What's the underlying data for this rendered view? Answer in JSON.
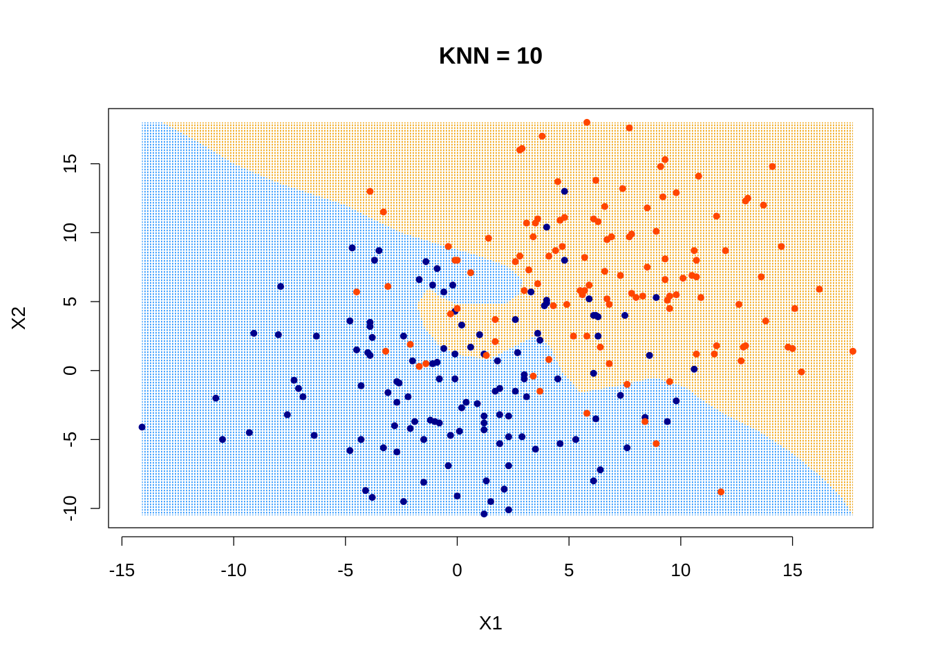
{
  "chart_data": {
    "type": "scatter",
    "title": "KNN = 10",
    "xlabel": "X1",
    "ylabel": "X2",
    "xlim": [
      -15.6,
      18.6
    ],
    "ylim": [
      -11.4,
      19.0
    ],
    "xticks": [
      -15,
      -10,
      -5,
      0,
      5,
      10,
      15
    ],
    "yticks": [
      -10,
      -5,
      0,
      5,
      10,
      15
    ],
    "grid_extent": {
      "x": [
        -14.1,
        17.7
      ],
      "y": [
        -10.5,
        18.0
      ]
    },
    "region_colors": {
      "class_0": "#1e90ff",
      "class_1": "#ffa500"
    },
    "point_colors": {
      "class_0": "#00008b",
      "class_1": "#ff4500"
    },
    "decision_boundary": [
      [
        -13.2,
        18.0
      ],
      [
        -11.5,
        16.5
      ],
      [
        -10.0,
        15.0
      ],
      [
        -8.0,
        13.6
      ],
      [
        -6.5,
        12.8
      ],
      [
        -5.0,
        12.0
      ],
      [
        -3.8,
        11.0
      ],
      [
        -2.5,
        10.0
      ],
      [
        -0.5,
        9.0
      ],
      [
        0.8,
        8.4
      ],
      [
        2.2,
        7.6
      ],
      [
        2.9,
        6.6
      ],
      [
        2.8,
        5.6
      ],
      [
        2.2,
        4.9
      ],
      [
        1.0,
        4.8
      ],
      [
        0.0,
        4.8
      ],
      [
        -0.7,
        5.3
      ],
      [
        -1.3,
        6.0
      ],
      [
        -1.8,
        4.8
      ],
      [
        -1.5,
        3.2
      ],
      [
        -0.8,
        1.8
      ],
      [
        -0.1,
        1.2
      ],
      [
        1.4,
        0.8
      ],
      [
        2.6,
        1.8
      ],
      [
        3.6,
        2.6
      ],
      [
        4.2,
        1.6
      ],
      [
        4.7,
        -0.1
      ],
      [
        5.5,
        -1.6
      ],
      [
        7.5,
        -1.0
      ],
      [
        8.8,
        -0.5
      ],
      [
        10.2,
        -1.2
      ],
      [
        11.0,
        -2.2
      ],
      [
        12.0,
        -3.2
      ],
      [
        13.5,
        -4.4
      ],
      [
        15.0,
        -6.0
      ],
      [
        16.2,
        -7.6
      ],
      [
        17.2,
        -9.2
      ],
      [
        17.7,
        -10.5
      ]
    ],
    "series": [
      {
        "values": [
          [
            -14.1,
            -4.1
          ],
          [
            -10.8,
            -2.0
          ],
          [
            -10.5,
            -5.0
          ],
          [
            -9.3,
            -4.5
          ],
          [
            -9.1,
            2.7
          ],
          [
            -7.9,
            6.1
          ],
          [
            -8.0,
            2.6
          ],
          [
            -7.3,
            -0.7
          ],
          [
            -7.1,
            -1.3
          ],
          [
            -6.9,
            -1.9
          ],
          [
            -7.6,
            -3.2
          ],
          [
            -6.4,
            -4.7
          ],
          [
            -6.3,
            2.5
          ],
          [
            -4.8,
            3.6
          ],
          [
            -4.7,
            8.9
          ],
          [
            -4.5,
            1.5
          ],
          [
            -4.3,
            -1.1
          ],
          [
            -4.3,
            -5.0
          ],
          [
            -4.8,
            -5.8
          ],
          [
            -4.1,
            -8.7
          ],
          [
            -3.8,
            -9.2
          ],
          [
            -3.9,
            3.5
          ],
          [
            -3.9,
            3.2
          ],
          [
            -3.8,
            2.4
          ],
          [
            -4.0,
            1.3
          ],
          [
            -3.9,
            1.1
          ],
          [
            -3.5,
            8.7
          ],
          [
            -3.7,
            8.0
          ],
          [
            -3.3,
            -5.6
          ],
          [
            -3.1,
            -1.6
          ],
          [
            -2.7,
            -0.8
          ],
          [
            -2.6,
            -0.9
          ],
          [
            -2.7,
            -2.3
          ],
          [
            -2.8,
            -4.0
          ],
          [
            -2.7,
            -5.9
          ],
          [
            -2.4,
            -9.5
          ],
          [
            -2.4,
            2.5
          ],
          [
            -2.2,
            -1.9
          ],
          [
            -2.1,
            -4.2
          ],
          [
            -2.0,
            0.7
          ],
          [
            -1.9,
            -3.7
          ],
          [
            -1.7,
            6.6
          ],
          [
            -1.5,
            -8.1
          ],
          [
            -1.5,
            -5.0
          ],
          [
            -1.4,
            7.9
          ],
          [
            -1.2,
            -3.6
          ],
          [
            -1.1,
            6.2
          ],
          [
            -1.1,
            0.5
          ],
          [
            -0.9,
            0.6
          ],
          [
            -1.0,
            -3.7
          ],
          [
            -0.8,
            -3.8
          ],
          [
            -0.9,
            7.4
          ],
          [
            -0.8,
            -0.6
          ],
          [
            -0.6,
            5.7
          ],
          [
            -0.6,
            1.6
          ],
          [
            -0.4,
            -6.9
          ],
          [
            -0.2,
            6.2
          ],
          [
            -0.3,
            -4.7
          ],
          [
            -0.1,
            -0.6
          ],
          [
            -0.1,
            4.3
          ],
          [
            -0.1,
            1.2
          ],
          [
            0.0,
            -9.1
          ],
          [
            0.1,
            -4.4
          ],
          [
            0.2,
            3.3
          ],
          [
            0.2,
            -2.7
          ],
          [
            0.4,
            -2.3
          ],
          [
            0.6,
            1.7
          ],
          [
            0.9,
            -2.4
          ],
          [
            1.0,
            2.6
          ],
          [
            1.2,
            1.2
          ],
          [
            1.2,
            -3.3
          ],
          [
            1.2,
            -3.8
          ],
          [
            1.2,
            -4.3
          ],
          [
            1.2,
            -10.4
          ],
          [
            1.3,
            -8.0
          ],
          [
            1.5,
            -9.5
          ],
          [
            1.7,
            -1.5
          ],
          [
            1.8,
            0.7
          ],
          [
            1.9,
            -1.3
          ],
          [
            1.9,
            -3.2
          ],
          [
            1.9,
            -5.3
          ],
          [
            2.1,
            -8.6
          ],
          [
            2.3,
            -4.8
          ],
          [
            2.3,
            -6.9
          ],
          [
            2.3,
            -10.1
          ],
          [
            2.3,
            -3.3
          ],
          [
            2.6,
            -1.5
          ],
          [
            2.6,
            3.7
          ],
          [
            2.7,
            1.3
          ],
          [
            2.9,
            -4.8
          ],
          [
            3.0,
            -0.3
          ],
          [
            3.0,
            -0.6
          ],
          [
            3.1,
            -1.9
          ],
          [
            3.3,
            5.7
          ],
          [
            3.5,
            -5.7
          ],
          [
            3.6,
            2.7
          ],
          [
            3.7,
            2.2
          ],
          [
            3.9,
            4.7
          ],
          [
            4.0,
            4.9
          ],
          [
            4.0,
            5.1
          ],
          [
            4.0,
            10.4
          ],
          [
            4.5,
            -0.6
          ],
          [
            4.6,
            -5.3
          ],
          [
            4.8,
            13.0
          ],
          [
            4.8,
            8.0
          ],
          [
            5.3,
            -5.0
          ],
          [
            5.9,
            5.2
          ],
          [
            6.1,
            4.0
          ],
          [
            6.2,
            4.0
          ],
          [
            6.1,
            -0.2
          ],
          [
            6.1,
            -8.0
          ],
          [
            6.2,
            -3.5
          ],
          [
            6.3,
            2.5
          ],
          [
            6.3,
            3.9
          ],
          [
            6.4,
            -7.2
          ],
          [
            7.3,
            -1.8
          ],
          [
            7.5,
            4.0
          ],
          [
            7.6,
            -5.6
          ],
          [
            8.4,
            -3.4
          ],
          [
            8.6,
            1.1
          ],
          [
            8.9,
            5.3
          ],
          [
            9.4,
            -3.7
          ],
          [
            9.8,
            -2.2
          ],
          [
            10.6,
            0.1
          ]
        ]
      },
      {
        "values": [
          [
            -4.5,
            5.7
          ],
          [
            -3.9,
            13.0
          ],
          [
            -3.3,
            11.5
          ],
          [
            -3.2,
            1.4
          ],
          [
            -3.1,
            6.1
          ],
          [
            -2.1,
            1.9
          ],
          [
            -1.7,
            0.3
          ],
          [
            -1.4,
            0.5
          ],
          [
            -0.4,
            9.0
          ],
          [
            -0.3,
            4.1
          ],
          [
            -0.1,
            8.0
          ],
          [
            0.0,
            8.0
          ],
          [
            0.0,
            4.5
          ],
          [
            0.6,
            7.1
          ],
          [
            1.4,
            9.6
          ],
          [
            1.7,
            3.7
          ],
          [
            1.7,
            2.1
          ],
          [
            1.3,
            1.1
          ],
          [
            2.6,
            7.9
          ],
          [
            2.8,
            8.3
          ],
          [
            2.8,
            16.0
          ],
          [
            2.9,
            16.1
          ],
          [
            3.0,
            5.8
          ],
          [
            3.1,
            10.7
          ],
          [
            3.2,
            7.3
          ],
          [
            3.4,
            9.7
          ],
          [
            3.5,
            10.7
          ],
          [
            3.6,
            11.0
          ],
          [
            3.8,
            17.0
          ],
          [
            3.6,
            6.3
          ],
          [
            3.4,
            -0.4
          ],
          [
            3.7,
            -1.5
          ],
          [
            4.1,
            0.8
          ],
          [
            4.1,
            8.3
          ],
          [
            4.3,
            4.7
          ],
          [
            4.4,
            8.7
          ],
          [
            4.5,
            13.7
          ],
          [
            4.6,
            10.9
          ],
          [
            4.7,
            9.0
          ],
          [
            4.8,
            11.1
          ],
          [
            4.9,
            4.8
          ],
          [
            5.2,
            2.5
          ],
          [
            5.5,
            5.8
          ],
          [
            5.6,
            5.5
          ],
          [
            5.7,
            5.8
          ],
          [
            5.7,
            8.2
          ],
          [
            5.8,
            2.5
          ],
          [
            5.8,
            18.0
          ],
          [
            5.8,
            -3.1
          ],
          [
            5.9,
            6.2
          ],
          [
            6.1,
            11.0
          ],
          [
            6.2,
            13.8
          ],
          [
            6.3,
            10.8
          ],
          [
            6.6,
            11.9
          ],
          [
            6.6,
            7.2
          ],
          [
            6.7,
            5.2
          ],
          [
            6.8,
            4.8
          ],
          [
            6.8,
            0.5
          ],
          [
            6.4,
            1.7
          ],
          [
            6.7,
            9.5
          ],
          [
            6.9,
            9.7
          ],
          [
            7.3,
            6.9
          ],
          [
            7.4,
            13.2
          ],
          [
            7.6,
            -1.0
          ],
          [
            7.7,
            9.7
          ],
          [
            7.7,
            17.6
          ],
          [
            7.8,
            9.9
          ],
          [
            7.8,
            5.6
          ],
          [
            8.0,
            5.3
          ],
          [
            8.3,
            5.4
          ],
          [
            8.4,
            -3.7
          ],
          [
            8.5,
            7.5
          ],
          [
            8.5,
            11.8
          ],
          [
            8.9,
            -5.3
          ],
          [
            8.9,
            10.1
          ],
          [
            9.1,
            14.8
          ],
          [
            9.2,
            12.6
          ],
          [
            9.3,
            6.6
          ],
          [
            9.3,
            8.1
          ],
          [
            9.3,
            15.3
          ],
          [
            9.4,
            5.1
          ],
          [
            9.5,
            5.4
          ],
          [
            9.5,
            4.5
          ],
          [
            9.5,
            -0.8
          ],
          [
            9.8,
            5.5
          ],
          [
            9.8,
            12.9
          ],
          [
            10.1,
            6.7
          ],
          [
            10.5,
            6.9
          ],
          [
            10.6,
            8.7
          ],
          [
            10.7,
            8.0
          ],
          [
            10.7,
            6.8
          ],
          [
            10.8,
            14.1
          ],
          [
            10.9,
            5.3
          ],
          [
            10.7,
            1.2
          ],
          [
            11.5,
            1.2
          ],
          [
            11.6,
            1.8
          ],
          [
            11.6,
            11.2
          ],
          [
            12.0,
            8.7
          ],
          [
            11.8,
            -8.8
          ],
          [
            12.6,
            4.8
          ],
          [
            12.7,
            0.7
          ],
          [
            12.8,
            1.7
          ],
          [
            12.9,
            1.8
          ],
          [
            12.9,
            12.3
          ],
          [
            13.0,
            12.5
          ],
          [
            13.6,
            6.8
          ],
          [
            13.7,
            12.0
          ],
          [
            13.8,
            3.6
          ],
          [
            14.1,
            14.8
          ],
          [
            14.5,
            9.0
          ],
          [
            14.8,
            1.7
          ],
          [
            15.0,
            1.6
          ],
          [
            15.1,
            4.5
          ],
          [
            15.4,
            -0.1
          ],
          [
            16.2,
            5.9
          ],
          [
            17.7,
            1.4
          ]
        ]
      }
    ]
  }
}
